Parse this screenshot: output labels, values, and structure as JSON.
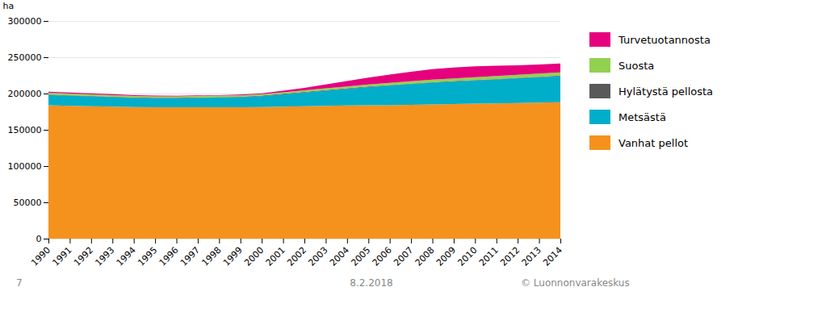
{
  "chart_data": {
    "type": "area",
    "stacked": true,
    "x": [
      1990,
      1991,
      1992,
      1993,
      1994,
      1995,
      1996,
      1997,
      1998,
      1999,
      2000,
      2001,
      2002,
      2003,
      2004,
      2005,
      2006,
      2007,
      2008,
      2009,
      2010,
      2011,
      2012,
      2013,
      2014
    ],
    "series": [
      {
        "name": "Vanhat pellot",
        "color": "#F5921E",
        "values": [
          184000,
          183000,
          182500,
          182000,
          181500,
          181000,
          181000,
          181000,
          181000,
          181000,
          181500,
          182000,
          182500,
          183000,
          183500,
          184000,
          184000,
          184500,
          185000,
          185500,
          186000,
          186500,
          187000,
          187500,
          188000
        ]
      },
      {
        "name": "Metsästä",
        "color": "#00AECA",
        "values": [
          14000,
          14000,
          13500,
          13000,
          12500,
          12500,
          12500,
          13000,
          13500,
          14000,
          15000,
          17000,
          19000,
          21000,
          23000,
          25000,
          27000,
          28500,
          30000,
          31000,
          32000,
          33000,
          34000,
          35000,
          36000
        ]
      },
      {
        "name": "Hylätystä pellosta",
        "color": "#595959",
        "values": [
          600,
          600,
          600,
          600,
          600,
          600,
          600,
          600,
          600,
          600,
          600,
          600,
          600,
          600,
          600,
          600,
          600,
          600,
          600,
          600,
          600,
          600,
          600,
          600,
          600
        ]
      },
      {
        "name": "Suosta",
        "color": "#92D050",
        "values": [
          2500,
          2400,
          2300,
          2200,
          2100,
          2000,
          2000,
          2000,
          2000,
          2000,
          2100,
          2200,
          2300,
          2500,
          2700,
          2900,
          3100,
          3300,
          3500,
          3700,
          3900,
          4100,
          4300,
          4500,
          4700
        ]
      },
      {
        "name": "Turvetuotannosta",
        "color": "#E6007E",
        "values": [
          1500,
          1500,
          1500,
          1400,
          1200,
          1000,
          800,
          800,
          800,
          900,
          1200,
          2000,
          3500,
          5500,
          7500,
          9500,
          11500,
          13000,
          14500,
          15000,
          15000,
          14000,
          13000,
          12500,
          12000
        ]
      }
    ],
    "ylabel": "ha",
    "xlim": [
      1990,
      2014
    ],
    "xticks": [
      1990,
      1991,
      1992,
      1993,
      1994,
      1995,
      1996,
      1997,
      1998,
      1999,
      2000,
      2001,
      2002,
      2003,
      2004,
      2005,
      2006,
      2007,
      2008,
      2009,
      2010,
      2011,
      2012,
      2013,
      2014
    ],
    "ylim": [
      0,
      300000
    ],
    "yticks": [
      0,
      50000,
      100000,
      150000,
      200000,
      250000,
      300000
    ],
    "grid": true,
    "legend": "right",
    "annotations": [
      "7",
      "8.2.2018",
      "© Luonnonvarakeskus"
    ]
  }
}
